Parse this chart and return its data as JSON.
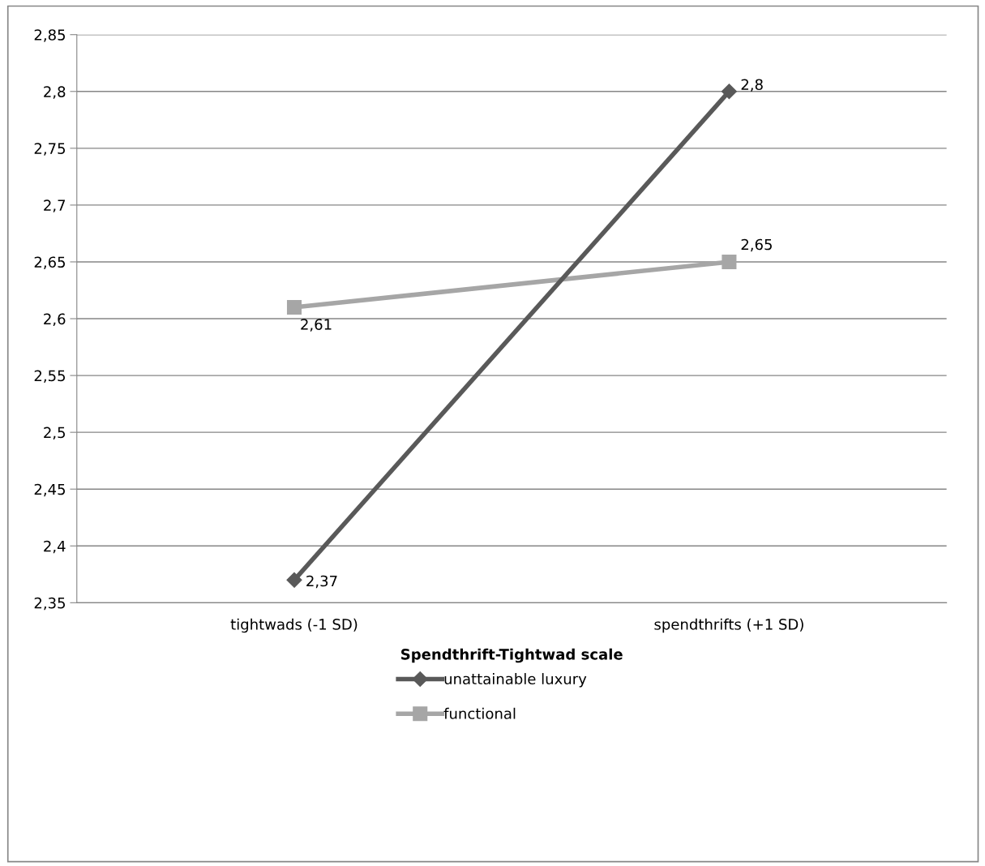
{
  "chart_data": {
    "type": "line",
    "xlabel": "Spendthrift-Tightwad scale",
    "categories": [
      "tightwads (-1 SD)",
      "spendthrifts (+1 SD)"
    ],
    "series": [
      {
        "name": "unattainable luxury",
        "color": "#595959",
        "marker": "diamond",
        "values": [
          2.37,
          2.8
        ],
        "value_labels": [
          "2,37",
          "2,8"
        ]
      },
      {
        "name": "functional",
        "color": "#a6a6a6",
        "marker": "square",
        "values": [
          2.61,
          2.65
        ],
        "value_labels": [
          "2,61",
          "2,65"
        ]
      }
    ],
    "ylim": [
      2.35,
      2.85
    ],
    "yticks": [
      {
        "value": 2.35,
        "label": "2,35"
      },
      {
        "value": 2.4,
        "label": "2,4"
      },
      {
        "value": 2.45,
        "label": "2,45"
      },
      {
        "value": 2.5,
        "label": "2,5"
      },
      {
        "value": 2.55,
        "label": "2,55"
      },
      {
        "value": 2.6,
        "label": "2,6"
      },
      {
        "value": 2.65,
        "label": "2,65"
      },
      {
        "value": 2.7,
        "label": "2,7"
      },
      {
        "value": 2.75,
        "label": "2,75"
      },
      {
        "value": 2.8,
        "label": "2,8"
      },
      {
        "value": 2.85,
        "label": "2,85"
      }
    ],
    "grid": "y",
    "legend": "bottom",
    "line_style": "solid"
  }
}
